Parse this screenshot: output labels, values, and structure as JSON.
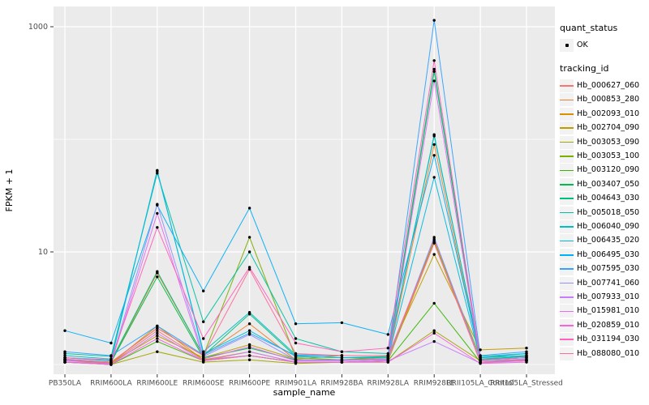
{
  "chart_data": {
    "type": "line",
    "title": "",
    "xlabel": "sample_name",
    "ylabel": "FPKM + 1",
    "y_scale": "log10",
    "y_tick_labels": [
      "10",
      "1000"
    ],
    "y_ticks": [
      10,
      1000
    ],
    "y_minor_ticks": [
      1,
      100
    ],
    "ylim_log": [
      0.82,
      1370
    ],
    "grid": "on",
    "legend_position": "right",
    "panel_bg": "#EBEBEB",
    "grid_color": "#FFFFFF",
    "axis_text_color": "#4D4D4D",
    "tick_mark_color": "#333333",
    "point_color": "#000000",
    "categories": [
      "PB350LA",
      "RRIM600LA",
      "RRIM600LE",
      "RRIM600SE",
      "RRIM600PE",
      "RRIM901LA",
      "RRIM928BA",
      "RRIM928LA",
      "RRIM928LE",
      "RRII105LA_Control",
      "RRII105LA_Stressed"
    ],
    "series": [
      {
        "name": "Hb_000627_060",
        "color": "#F8766D",
        "values": [
          1.1,
          1.02,
          2.0,
          1.1,
          1.2,
          1.05,
          1.05,
          1.08,
          13.0,
          1.05,
          1.08
        ]
      },
      {
        "name": "Hb_000853_280",
        "color": "#EA8331",
        "values": [
          1.1,
          1.05,
          6.5,
          1.2,
          2.3,
          1.1,
          1.1,
          1.15,
          90.0,
          1.1,
          1.15
        ]
      },
      {
        "name": "Hb_002093_010",
        "color": "#D89000",
        "values": [
          1.05,
          1.02,
          2.2,
          1.1,
          1.3,
          1.05,
          1.05,
          1.08,
          12.0,
          1.05,
          1.08
        ]
      },
      {
        "name": "Hb_002704_090",
        "color": "#C09B00",
        "values": [
          1.1,
          1.03,
          1.8,
          1.15,
          1.5,
          1.12,
          1.2,
          1.2,
          9.5,
          1.35,
          1.4
        ]
      },
      {
        "name": "Hb_003053_090",
        "color": "#A3A500",
        "values": [
          1.05,
          1.0,
          1.3,
          1.05,
          1.1,
          1.02,
          1.05,
          1.05,
          2.0,
          1.08,
          1.1
        ]
      },
      {
        "name": "Hb_003053_100",
        "color": "#7CAE00",
        "values": [
          1.1,
          1.05,
          2.1,
          1.2,
          13.5,
          1.15,
          1.1,
          1.18,
          12.5,
          1.15,
          1.2
        ]
      },
      {
        "name": "Hb_003120_090",
        "color": "#39B600",
        "values": [
          1.05,
          1.0,
          1.6,
          1.08,
          1.2,
          1.05,
          1.05,
          1.08,
          3.5,
          1.05,
          1.08
        ]
      },
      {
        "name": "Hb_003407_050",
        "color": "#00BB4E",
        "values": [
          1.1,
          1.05,
          6.0,
          1.15,
          1.4,
          1.1,
          1.1,
          1.12,
          400,
          1.1,
          1.15
        ]
      },
      {
        "name": "Hb_004643_030",
        "color": "#00BF7D",
        "values": [
          1.15,
          1.08,
          6.7,
          1.2,
          2.8,
          1.18,
          1.15,
          1.18,
          420,
          1.12,
          1.18
        ]
      },
      {
        "name": "Hb_005018_050",
        "color": "#00C1A3",
        "values": [
          1.25,
          1.18,
          50.0,
          2.4,
          10.0,
          1.7,
          1.3,
          1.25,
          107,
          1.18,
          1.25
        ]
      },
      {
        "name": "Hb_006040_090",
        "color": "#00BFC4",
        "values": [
          1.2,
          1.12,
          52.0,
          1.3,
          2.9,
          1.22,
          1.2,
          1.2,
          110,
          1.15,
          1.2
        ]
      },
      {
        "name": "Hb_006435_020",
        "color": "#00BAE0",
        "values": [
          1.15,
          1.08,
          53.0,
          1.25,
          2.0,
          1.18,
          1.15,
          1.15,
          46.0,
          1.1,
          1.18
        ]
      },
      {
        "name": "Hb_006495_030",
        "color": "#00B0F6",
        "values": [
          2.0,
          1.55,
          26.0,
          4.5,
          24.5,
          2.3,
          2.35,
          1.85,
          72.0,
          1.15,
          1.25
        ]
      },
      {
        "name": "Hb_007595_030",
        "color": "#35A2FF",
        "values": [
          1.3,
          1.2,
          2.2,
          1.22,
          1.9,
          1.2,
          1.2,
          1.2,
          1140,
          1.2,
          1.3
        ]
      },
      {
        "name": "Hb_007741_060",
        "color": "#9590FF",
        "values": [
          1.1,
          1.05,
          26.5,
          1.18,
          1.85,
          1.1,
          1.1,
          1.12,
          13.5,
          1.08,
          1.12
        ]
      },
      {
        "name": "Hb_007933_010",
        "color": "#C77CFF",
        "values": [
          1.05,
          1.0,
          1.9,
          1.08,
          1.3,
          1.05,
          1.05,
          1.08,
          1.6,
          1.03,
          1.08
        ]
      },
      {
        "name": "Hb_015981_010",
        "color": "#E76BF3",
        "values": [
          1.08,
          1.02,
          22.0,
          1.12,
          1.44,
          1.08,
          1.08,
          1.1,
          330,
          1.05,
          1.1
        ]
      },
      {
        "name": "Hb_020859_010",
        "color": "#FA62DB",
        "values": [
          1.05,
          1.0,
          1.7,
          1.08,
          1.2,
          1.05,
          1.05,
          1.05,
          1.9,
          1.02,
          1.05
        ]
      },
      {
        "name": "Hb_031194_030",
        "color": "#FF62BC",
        "values": [
          1.15,
          1.1,
          16.5,
          1.7,
          7.3,
          1.55,
          1.3,
          1.4,
          500,
          1.1,
          1.15
        ]
      },
      {
        "name": "Hb_088080_010",
        "color": "#FF6A98",
        "values": [
          1.12,
          1.05,
          2.1,
          1.2,
          7.0,
          1.25,
          1.2,
          1.2,
          12.0,
          1.05,
          1.1
        ]
      }
    ],
    "legend": {
      "quant_status_title": "quant_status",
      "quant_status_items": [
        {
          "label": "OK"
        }
      ],
      "tracking_id_title": "tracking_id"
    }
  }
}
